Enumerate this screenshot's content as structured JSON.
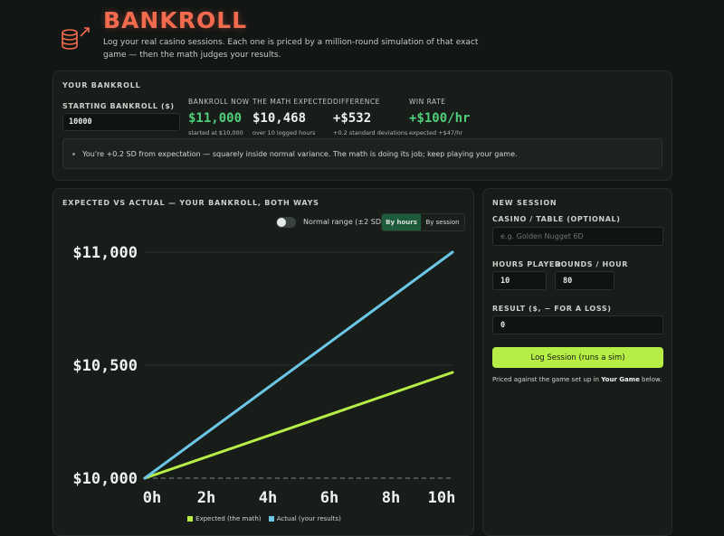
{
  "header": {
    "title": "BANKROLL",
    "subtitle": "Log your real casino sessions. Each one is priced by a million-round simulation of that exact game — then the math judges your results."
  },
  "bankroll": {
    "section_label": "YOUR BANKROLL",
    "starting_label": "STARTING BANKROLL ($)",
    "starting_value": "10000",
    "stats": [
      {
        "label": "BANKROLL NOW",
        "value": "$11,000",
        "sub": "started at $10,000"
      },
      {
        "label": "THE MATH EXPECTED",
        "value": "$10,468",
        "sub": "over 10 logged hours"
      },
      {
        "label": "DIFFERENCE",
        "value": "+$532",
        "sub": "+0.2 standard deviations"
      },
      {
        "label": "WIN RATE",
        "value": "+$100/hr",
        "sub": "expected +$47/hr"
      }
    ],
    "insight": "You're +0.2 SD from expectation — squarely inside normal variance. The math is doing its job; keep playing your game."
  },
  "chart_panel": {
    "section_label": "EXPECTED VS ACTUAL — YOUR BANKROLL, BOTH WAYS",
    "toggle_label": "Normal range (±2 SD)",
    "seg_hours": "By hours",
    "seg_session": "By session"
  },
  "chart_data": {
    "type": "line",
    "x": [
      0,
      10
    ],
    "xlim": [
      0,
      10
    ],
    "ylim": [
      10000,
      11000
    ],
    "x_ticks": [
      0,
      2,
      4,
      6,
      8,
      10
    ],
    "x_tick_labels": [
      "0h",
      "2h",
      "4h",
      "6h",
      "8h",
      "10h"
    ],
    "y_ticks": [
      10000,
      10500,
      11000
    ],
    "y_tick_labels": [
      "$10,000",
      "$10,500",
      "$11,000"
    ],
    "series": [
      {
        "name": "Expected (the math)",
        "color": "#b7ee45",
        "values": [
          10000,
          10468
        ]
      },
      {
        "name": "Actual (your results)",
        "color": "#6cc6e6",
        "values": [
          10000,
          11000
        ]
      }
    ],
    "baseline": 10000,
    "grid": true,
    "legend": "bottom"
  },
  "session": {
    "section_label": "NEW SESSION",
    "casino_label": "CASINO / TABLE (OPTIONAL)",
    "casino_placeholder": "e.g. Golden Nugget 6D",
    "hours_label": "HOURS PLAYED",
    "hours_value": "10",
    "rounds_label": "ROUNDS / HOUR",
    "rounds_value": "80",
    "result_label": "RESULT ($, − FOR A LOSS)",
    "result_value": "0",
    "log_button": "Log Session (runs a sim)",
    "note_prefix": "Priced against the game set up in ",
    "note_bold": "Your Game",
    "note_suffix": " below."
  },
  "colors": {
    "accent_red": "#f26b4f",
    "positive_green": "#4fcf7a",
    "expected_line": "#b7ee45",
    "actual_line": "#6cc6e6"
  }
}
